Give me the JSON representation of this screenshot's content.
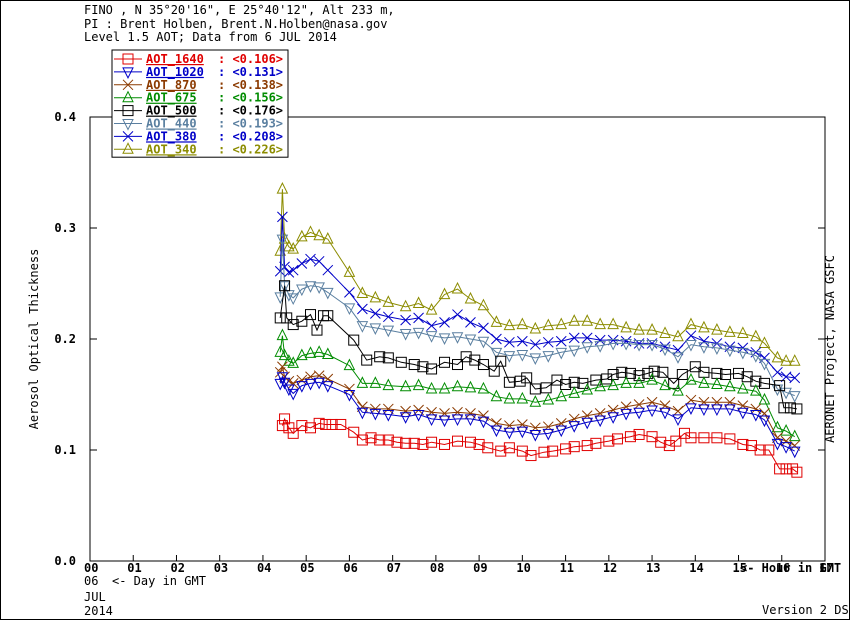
{
  "header": {
    "line1": "FINO , N 35°20'16\", E 25°40'12\", Alt 233 m,",
    "line2": "PI : Brent Holben, Brent.N.Holben@nasa.gov",
    "line3": "Level 1.5 AOT; Data from 6 JUL 2014"
  },
  "footer": {
    "day": "06",
    "day_label": "<- Day in GMT",
    "month": "JUL",
    "year": "2014",
    "version": "Version 2 DS",
    "credit": "AERONET Project, NASA GSFC"
  },
  "chart_data": {
    "type": "line",
    "ylabel": "Aerosol Optical Thickness",
    "xlabel": "<- Hour in GMT",
    "ylim": [
      0.0,
      0.4
    ],
    "xlim": [
      0,
      17
    ],
    "yticks": [
      "0.0",
      "0.1",
      "0.2",
      "0.3",
      "0.4"
    ],
    "xticks": [
      "00",
      "01",
      "02",
      "03",
      "04",
      "05",
      "06",
      "07",
      "08",
      "09",
      "10",
      "11",
      "12",
      "13",
      "14",
      "15",
      "16",
      "17"
    ],
    "legend_position": "top-left",
    "series": [
      {
        "name": "AOT_1640",
        "mean": "<0.106>",
        "color": "#e00000",
        "marker": "square",
        "x": [
          4.45,
          4.5,
          4.6,
          4.7,
          4.9,
          5.1,
          5.3,
          5.45,
          5.6,
          5.8,
          6.1,
          6.3,
          6.5,
          6.7,
          6.9,
          7.1,
          7.3,
          7.5,
          7.7,
          7.9,
          8.2,
          8.5,
          8.8,
          9.0,
          9.2,
          9.5,
          9.7,
          10.0,
          10.2,
          10.5,
          10.7,
          11.0,
          11.2,
          11.5,
          11.7,
          12.0,
          12.2,
          12.5,
          12.7,
          13.0,
          13.2,
          13.4,
          13.55,
          13.75,
          13.9,
          14.2,
          14.5,
          14.8,
          15.1,
          15.3,
          15.5,
          15.7,
          15.95,
          16.1,
          16.25,
          16.35
        ],
        "y": [
          0.122,
          0.128,
          0.12,
          0.115,
          0.122,
          0.12,
          0.124,
          0.123,
          0.123,
          0.123,
          0.116,
          0.109,
          0.111,
          0.109,
          0.109,
          0.107,
          0.106,
          0.106,
          0.105,
          0.107,
          0.105,
          0.108,
          0.107,
          0.105,
          0.102,
          0.099,
          0.102,
          0.099,
          0.095,
          0.098,
          0.099,
          0.101,
          0.103,
          0.104,
          0.106,
          0.108,
          0.11,
          0.112,
          0.114,
          0.112,
          0.107,
          0.104,
          0.108,
          0.115,
          0.111,
          0.111,
          0.111,
          0.11,
          0.105,
          0.104,
          0.1,
          0.1,
          0.083,
          0.083,
          0.083,
          0.08
        ]
      },
      {
        "name": "AOT_1020",
        "mean": "<0.131>",
        "color": "#0000c8",
        "marker": "triangle-down",
        "x": [
          4.4,
          4.45,
          4.5,
          4.6,
          4.7,
          4.9,
          5.1,
          5.3,
          5.5,
          6.0,
          6.3,
          6.6,
          6.9,
          7.3,
          7.6,
          7.9,
          8.2,
          8.5,
          8.8,
          9.1,
          9.4,
          9.7,
          10.0,
          10.3,
          10.6,
          10.9,
          11.2,
          11.5,
          11.8,
          12.1,
          12.4,
          12.7,
          13.0,
          13.3,
          13.6,
          13.9,
          14.2,
          14.5,
          14.8,
          15.1,
          15.4,
          15.6,
          15.9,
          16.1,
          16.3
        ],
        "y": [
          0.16,
          0.166,
          0.161,
          0.155,
          0.151,
          0.158,
          0.16,
          0.161,
          0.158,
          0.15,
          0.134,
          0.133,
          0.132,
          0.13,
          0.132,
          0.128,
          0.127,
          0.128,
          0.128,
          0.126,
          0.118,
          0.116,
          0.117,
          0.114,
          0.115,
          0.118,
          0.122,
          0.125,
          0.127,
          0.13,
          0.133,
          0.134,
          0.136,
          0.134,
          0.128,
          0.138,
          0.137,
          0.137,
          0.137,
          0.134,
          0.132,
          0.127,
          0.106,
          0.103,
          0.099
        ]
      },
      {
        "name": "AOT_870",
        "mean": "<0.138>",
        "color": "#8b3a00",
        "marker": "x",
        "x": [
          4.4,
          4.45,
          4.5,
          4.6,
          4.7,
          4.9,
          5.1,
          5.3,
          5.5,
          6.0,
          6.3,
          6.6,
          6.9,
          7.3,
          7.6,
          7.9,
          8.2,
          8.5,
          8.8,
          9.1,
          9.4,
          9.7,
          10.0,
          10.3,
          10.6,
          10.9,
          11.2,
          11.5,
          11.8,
          12.1,
          12.4,
          12.7,
          13.0,
          13.3,
          13.6,
          13.9,
          14.2,
          14.5,
          14.8,
          15.1,
          15.4,
          15.6,
          15.9,
          16.1,
          16.3
        ],
        "y": [
          0.17,
          0.175,
          0.166,
          0.162,
          0.16,
          0.163,
          0.166,
          0.167,
          0.164,
          0.155,
          0.139,
          0.137,
          0.137,
          0.135,
          0.136,
          0.134,
          0.133,
          0.134,
          0.133,
          0.131,
          0.124,
          0.122,
          0.123,
          0.12,
          0.121,
          0.124,
          0.128,
          0.131,
          0.133,
          0.136,
          0.139,
          0.141,
          0.143,
          0.14,
          0.135,
          0.145,
          0.143,
          0.143,
          0.143,
          0.14,
          0.137,
          0.133,
          0.111,
          0.108,
          0.104
        ]
      },
      {
        "name": "AOT_675",
        "mean": "<0.156>",
        "color": "#008c00",
        "marker": "triangle-up",
        "x": [
          4.4,
          4.45,
          4.5,
          4.6,
          4.7,
          4.9,
          5.1,
          5.3,
          5.5,
          6.0,
          6.3,
          6.6,
          6.9,
          7.3,
          7.6,
          7.9,
          8.2,
          8.5,
          8.8,
          9.1,
          9.4,
          9.7,
          10.0,
          10.3,
          10.6,
          10.9,
          11.2,
          11.5,
          11.8,
          12.1,
          12.4,
          12.7,
          13.0,
          13.3,
          13.6,
          13.9,
          14.2,
          14.5,
          14.8,
          15.1,
          15.4,
          15.6,
          15.9,
          16.1,
          16.3
        ],
        "y": [
          0.188,
          0.203,
          0.185,
          0.18,
          0.178,
          0.185,
          0.187,
          0.188,
          0.186,
          0.176,
          0.16,
          0.16,
          0.158,
          0.157,
          0.158,
          0.155,
          0.155,
          0.157,
          0.156,
          0.155,
          0.148,
          0.146,
          0.146,
          0.143,
          0.145,
          0.148,
          0.151,
          0.154,
          0.157,
          0.158,
          0.16,
          0.16,
          0.163,
          0.158,
          0.153,
          0.163,
          0.16,
          0.159,
          0.157,
          0.155,
          0.153,
          0.145,
          0.12,
          0.117,
          0.112
        ]
      },
      {
        "name": "AOT_500",
        "mean": "<0.176>",
        "color": "#000000",
        "marker": "square",
        "x": [
          4.4,
          4.5,
          4.55,
          4.7,
          4.9,
          5.1,
          5.25,
          5.4,
          5.5,
          6.1,
          6.4,
          6.7,
          6.9,
          7.2,
          7.5,
          7.7,
          7.9,
          8.2,
          8.5,
          8.7,
          8.9,
          9.1,
          9.35,
          9.5,
          9.7,
          9.95,
          10.1,
          10.3,
          10.55,
          10.8,
          11.0,
          11.2,
          11.4,
          11.7,
          11.95,
          12.1,
          12.3,
          12.5,
          12.7,
          12.9,
          13.05,
          13.25,
          13.5,
          13.7,
          14.0,
          14.2,
          14.5,
          14.7,
          15.0,
          15.2,
          15.4,
          15.6,
          15.95,
          16.05,
          16.2,
          16.35
        ],
        "y": [
          0.219,
          0.248,
          0.219,
          0.213,
          0.216,
          0.222,
          0.208,
          0.221,
          0.221,
          0.199,
          0.181,
          0.184,
          0.183,
          0.179,
          0.177,
          0.175,
          0.173,
          0.179,
          0.177,
          0.184,
          0.181,
          0.177,
          0.171,
          0.18,
          0.161,
          0.162,
          0.165,
          0.155,
          0.156,
          0.163,
          0.159,
          0.161,
          0.16,
          0.163,
          0.164,
          0.168,
          0.17,
          0.169,
          0.167,
          0.169,
          0.171,
          0.17,
          0.16,
          0.168,
          0.175,
          0.17,
          0.169,
          0.168,
          0.169,
          0.166,
          0.162,
          0.16,
          0.158,
          0.138,
          0.138,
          0.137
        ]
      },
      {
        "name": "AOT_440",
        "mean": "<0.193>",
        "color": "#5a7fa0",
        "marker": "triangle-down",
        "x": [
          4.4,
          4.45,
          4.5,
          4.6,
          4.7,
          4.9,
          5.1,
          5.3,
          5.5,
          6.0,
          6.3,
          6.6,
          6.9,
          7.3,
          7.6,
          7.9,
          8.2,
          8.5,
          8.8,
          9.1,
          9.4,
          9.7,
          10.0,
          10.3,
          10.6,
          10.9,
          11.2,
          11.5,
          11.8,
          12.1,
          12.4,
          12.7,
          13.0,
          13.3,
          13.6,
          13.9,
          14.2,
          14.5,
          14.8,
          15.1,
          15.4,
          15.6,
          15.9,
          16.1,
          16.3
        ],
        "y": [
          0.238,
          0.29,
          0.248,
          0.24,
          0.237,
          0.245,
          0.248,
          0.247,
          0.242,
          0.228,
          0.212,
          0.21,
          0.208,
          0.205,
          0.206,
          0.203,
          0.201,
          0.202,
          0.2,
          0.198,
          0.188,
          0.185,
          0.186,
          0.183,
          0.185,
          0.188,
          0.19,
          0.193,
          0.194,
          0.196,
          0.196,
          0.195,
          0.195,
          0.191,
          0.184,
          0.195,
          0.193,
          0.192,
          0.19,
          0.188,
          0.185,
          0.178,
          0.155,
          0.152,
          0.149
        ]
      },
      {
        "name": "AOT_380",
        "mean": "<0.208>",
        "color": "#0000c8",
        "marker": "x",
        "x": [
          4.4,
          4.45,
          4.5,
          4.6,
          4.7,
          4.9,
          5.1,
          5.3,
          5.5,
          6.0,
          6.3,
          6.6,
          6.9,
          7.3,
          7.6,
          7.9,
          8.2,
          8.5,
          8.8,
          9.1,
          9.4,
          9.7,
          10.0,
          10.3,
          10.6,
          10.9,
          11.2,
          11.5,
          11.8,
          12.1,
          12.4,
          12.7,
          13.0,
          13.3,
          13.6,
          13.9,
          14.2,
          14.5,
          14.8,
          15.1,
          15.4,
          15.6,
          15.9,
          16.1,
          16.3
        ],
        "y": [
          0.261,
          0.31,
          0.265,
          0.26,
          0.262,
          0.268,
          0.272,
          0.27,
          0.262,
          0.242,
          0.227,
          0.223,
          0.22,
          0.217,
          0.219,
          0.212,
          0.215,
          0.222,
          0.215,
          0.21,
          0.2,
          0.197,
          0.198,
          0.195,
          0.197,
          0.198,
          0.201,
          0.201,
          0.199,
          0.199,
          0.198,
          0.196,
          0.196,
          0.193,
          0.19,
          0.203,
          0.198,
          0.196,
          0.193,
          0.192,
          0.188,
          0.183,
          0.17,
          0.166,
          0.165
        ]
      },
      {
        "name": "AOT_340",
        "mean": "<0.226>",
        "color": "#8c8c00",
        "marker": "triangle-up",
        "x": [
          4.4,
          4.45,
          4.5,
          4.6,
          4.7,
          4.9,
          5.1,
          5.3,
          5.5,
          6.0,
          6.3,
          6.6,
          6.9,
          7.3,
          7.6,
          7.9,
          8.2,
          8.5,
          8.8,
          9.1,
          9.4,
          9.7,
          10.0,
          10.3,
          10.6,
          10.9,
          11.2,
          11.5,
          11.8,
          12.1,
          12.4,
          12.7,
          13.0,
          13.3,
          13.6,
          13.9,
          14.2,
          14.5,
          14.8,
          15.1,
          15.4,
          15.6,
          15.9,
          16.1,
          16.3
        ],
        "y": [
          0.279,
          0.335,
          0.29,
          0.283,
          0.281,
          0.292,
          0.296,
          0.293,
          0.29,
          0.26,
          0.241,
          0.237,
          0.233,
          0.229,
          0.232,
          0.226,
          0.24,
          0.245,
          0.236,
          0.23,
          0.215,
          0.212,
          0.213,
          0.209,
          0.212,
          0.213,
          0.216,
          0.216,
          0.213,
          0.213,
          0.21,
          0.208,
          0.208,
          0.205,
          0.202,
          0.213,
          0.21,
          0.208,
          0.206,
          0.205,
          0.202,
          0.196,
          0.183,
          0.18,
          0.18
        ]
      }
    ]
  }
}
